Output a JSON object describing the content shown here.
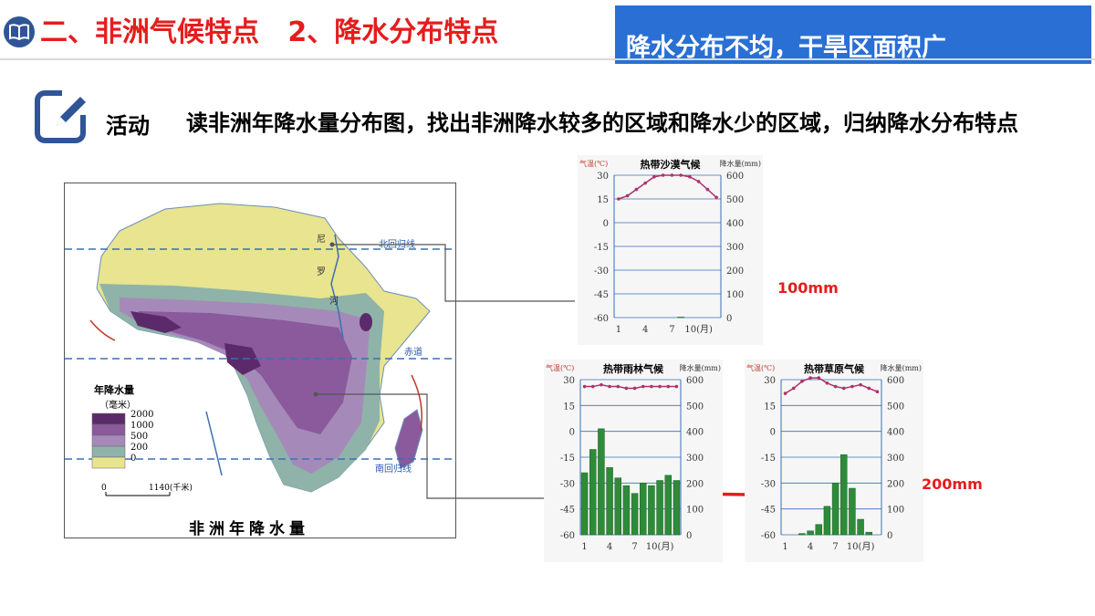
{
  "header": {
    "title": "二、非洲气候特点   2、降水分布特点",
    "highlight": "降水分布不均，干旱区面积广",
    "colors": {
      "title": "#e61c1c",
      "highlight_bg": "#2a6fd4",
      "badge": "#2f5597"
    }
  },
  "activity": {
    "label": "活动",
    "text": "读非洲年降水量分布图，找出非洲降水较多的区域和降水少的区域，归纳降水分布特点"
  },
  "map": {
    "caption": "非洲年降水量",
    "legend_title": "年降水量",
    "legend_unit": "（毫米）",
    "legend": [
      {
        "label": "2000",
        "color": "#5b2a6a"
      },
      {
        "label": "1000",
        "color": "#8a5a9c"
      },
      {
        "label": "500",
        "color": "#a58ab9"
      },
      {
        "label": "200",
        "color": "#8fb3a8"
      },
      {
        "label": "0",
        "color": "#e8e48f"
      }
    ],
    "scale_start": "0",
    "scale_end": "1140(千米)",
    "labels": {
      "tropic_north": "北回归线",
      "equator": "赤道",
      "tropic_south": "南回归线",
      "nile1": "尼",
      "nile2": "罗",
      "nile3": "河"
    }
  },
  "panels": {
    "desert": {
      "title": "热带沙漠气候",
      "temp_label": "气温(℃)",
      "precip_label": "降水量(mm)",
      "temp_ticks": [
        "30",
        "15",
        "0",
        "-15",
        "-30",
        "-45",
        "-60"
      ],
      "precip_ticks": [
        "600",
        "500",
        "400",
        "300",
        "200",
        "100",
        "0"
      ],
      "month_ticks": [
        "1",
        "4",
        "7",
        "10(月)"
      ],
      "temperature": [
        15,
        17,
        21,
        25,
        29,
        30,
        30,
        30,
        29,
        26,
        21,
        16
      ],
      "precipitation": [
        0,
        0,
        0,
        0,
        0,
        0,
        0,
        2,
        0,
        0,
        0,
        0
      ]
    },
    "rainforest": {
      "title": "热带雨林气候",
      "temp_label": "气温(℃)",
      "precip_label": "降水量(mm)",
      "temp_ticks": [
        "30",
        "15",
        "0",
        "-15",
        "-30",
        "-45",
        "-60"
      ],
      "precip_ticks": [
        "600",
        "500",
        "400",
        "300",
        "200",
        "100",
        "0"
      ],
      "month_ticks": [
        "1",
        "4",
        "7",
        "10(月)"
      ],
      "temperature": [
        26,
        26,
        27,
        26,
        26,
        25,
        25,
        26,
        26,
        26,
        26,
        26
      ],
      "precipitation": [
        240,
        330,
        410,
        260,
        220,
        190,
        160,
        200,
        190,
        210,
        230,
        210
      ]
    },
    "savanna": {
      "title": "热带草原气候",
      "temp_label": "气温(℃)",
      "precip_label": "降水量(mm)",
      "temp_ticks": [
        "30",
        "15",
        "0",
        "-15",
        "-30",
        "-45",
        "-60"
      ],
      "precip_ticks": [
        "600",
        "500",
        "400",
        "300",
        "200",
        "100",
        "0"
      ],
      "month_ticks": [
        "1",
        "4",
        "7",
        "10(月)"
      ],
      "temperature": [
        22,
        25,
        29,
        31,
        31,
        28,
        26,
        25,
        26,
        27,
        25,
        23
      ],
      "precipitation": [
        0,
        0,
        5,
        15,
        40,
        110,
        200,
        310,
        180,
        60,
        10,
        0
      ]
    }
  },
  "notes": {
    "n100": "100mm",
    "n200": "200mm"
  }
}
